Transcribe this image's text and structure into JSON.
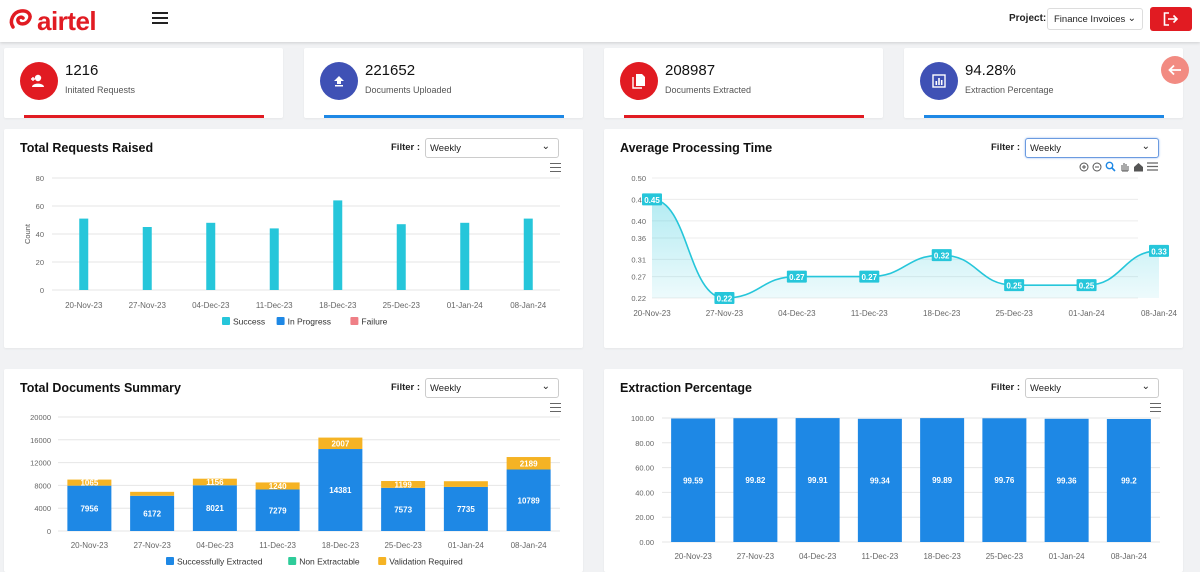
{
  "header": {
    "brand": "airtel",
    "project_label": "Project:",
    "project_value": "Finance Invoices"
  },
  "stats": [
    {
      "value": "1216",
      "label": "Initated Requests",
      "color": "#e11b22",
      "bar_color": "#e11b22",
      "icon": "add-user-icon"
    },
    {
      "value": "221652",
      "label": "Documents Uploaded",
      "color": "#3f51b5",
      "bar_color": "#1e88e5",
      "icon": "upload-icon"
    },
    {
      "value": "208987",
      "label": "Documents Extracted",
      "color": "#e11b22",
      "bar_color": "#e11b22",
      "icon": "document-icon"
    },
    {
      "value": "94.28%",
      "label": "Extraction Percentage",
      "color": "#3f51b5",
      "bar_color": "#1e88e5",
      "icon": "chart-icon"
    }
  ],
  "panels": {
    "requests": {
      "title": "Total Requests Raised",
      "filter_label": "Filter :",
      "filter_value": "Weekly"
    },
    "processing": {
      "title": "Average Processing Time",
      "filter_label": "Filter :",
      "filter_value": "Weekly"
    },
    "documents": {
      "title": "Total Documents Summary",
      "filter_label": "Filter :",
      "filter_value": "Weekly"
    },
    "extraction": {
      "title": "Extraction Percentage",
      "filter_label": "Filter :",
      "filter_value": "Weekly"
    }
  },
  "chart_data": [
    {
      "type": "bar",
      "categories": [
        "20-Nov-23",
        "27-Nov-23",
        "04-Dec-23",
        "11-Dec-23",
        "18-Dec-23",
        "25-Dec-23",
        "01-Jan-24",
        "08-Jan-24"
      ],
      "series": [
        {
          "name": "Success",
          "values": [
            51,
            45,
            48,
            44,
            64,
            47,
            48,
            51
          ],
          "color": "#26c6da"
        },
        {
          "name": "In Progress",
          "values": [
            0,
            0,
            0,
            0,
            0,
            0,
            0,
            0
          ],
          "color": "#1e88e5"
        },
        {
          "name": "Failure",
          "values": [
            0,
            0,
            0,
            0,
            0,
            0,
            0,
            0
          ],
          "color": "#ef7f86"
        }
      ],
      "ylabel": "Count",
      "ylim": [
        0,
        80
      ],
      "yticks": [
        "0",
        "20",
        "40",
        "60",
        "80"
      ],
      "legend": "bottom"
    },
    {
      "type": "area",
      "categories": [
        "20-Nov-23",
        "27-Nov-23",
        "04-Dec-23",
        "11-Dec-23",
        "18-Dec-23",
        "25-Dec-23",
        "01-Jan-24",
        "08-Jan-24"
      ],
      "series": [
        {
          "values": [
            0.45,
            0.22,
            0.27,
            0.27,
            0.32,
            0.25,
            0.25,
            0.33
          ],
          "labels": [
            "0.45",
            "0.22",
            "0.27",
            "0.27",
            "0.32",
            "0.25",
            "0.25",
            "0.33"
          ],
          "color": "#26c6da"
        }
      ],
      "ylim": [
        0.22,
        0.5
      ],
      "yticks": [
        "0.22",
        "0.27",
        "0.31",
        "0.36",
        "0.40",
        "0.45",
        "0.50"
      ],
      "ytick_values": [
        0.22,
        0.27,
        0.31,
        0.36,
        0.4,
        0.45,
        0.5
      ]
    },
    {
      "type": "bar",
      "stacked": true,
      "categories": [
        "20-Nov-23",
        "27-Nov-23",
        "04-Dec-23",
        "11-Dec-23",
        "18-Dec-23",
        "25-Dec-23",
        "01-Jan-24",
        "08-Jan-24"
      ],
      "series": [
        {
          "name": "Successfully Extracted",
          "values": [
            7956,
            6172,
            8021,
            7279,
            14381,
            7573,
            7735,
            10789
          ],
          "labels": [
            "7956",
            "6172",
            "8021",
            "7279",
            "14381",
            "7573",
            "7735",
            "10789"
          ],
          "color": "#1e88e5"
        },
        {
          "name": "Non Extractable",
          "values": [
            0,
            0,
            0,
            0,
            0,
            0,
            0,
            0
          ],
          "color": "#2ecc9a"
        },
        {
          "name": "Validation Required",
          "values": [
            1065,
            700,
            1156,
            1240,
            2007,
            1199,
            1000,
            2189
          ],
          "labels": [
            "1065",
            "",
            "1156",
            "1240",
            "2007",
            "1199",
            "",
            "2189"
          ],
          "color": "#f5b324"
        }
      ],
      "ylim": [
        0,
        20000
      ],
      "yticks": [
        "0",
        "4000",
        "8000",
        "12000",
        "16000",
        "20000"
      ],
      "legend": "bottom"
    },
    {
      "type": "bar",
      "categories": [
        "20-Nov-23",
        "27-Nov-23",
        "04-Dec-23",
        "11-Dec-23",
        "18-Dec-23",
        "25-Dec-23",
        "01-Jan-24",
        "08-Jan-24"
      ],
      "series": [
        {
          "values": [
            99.59,
            99.82,
            99.91,
            99.34,
            99.89,
            99.76,
            99.36,
            99.2
          ],
          "labels": [
            "99.59",
            "99.82",
            "99.91",
            "99.34",
            "99.89",
            "99.76",
            "99.36",
            "99.2"
          ],
          "color": "#1e88e5"
        }
      ],
      "ylim": [
        0,
        100
      ],
      "yticks": [
        "0.00",
        "20.00",
        "40.00",
        "60.00",
        "80.00",
        "100.00"
      ]
    }
  ]
}
